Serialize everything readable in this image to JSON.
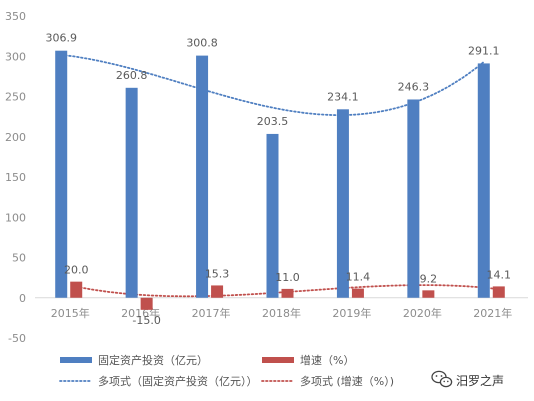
{
  "chart_data": {
    "type": "bar",
    "categories": [
      "2015年",
      "2016年",
      "2017年",
      "2018年",
      "2019年",
      "2020年",
      "2021年"
    ],
    "series": [
      {
        "name": "固定资产投资（亿元）",
        "values": [
          306.9,
          260.8,
          300.8,
          203.5,
          234.1,
          246.3,
          291.1
        ],
        "labels": [
          "306.9",
          "260.8",
          "300.8",
          "203.5",
          "234.1",
          "246.3",
          "291.1"
        ],
        "color": "#4f7fc1"
      },
      {
        "name": "增速（%）",
        "values": [
          20.0,
          -15.0,
          15.3,
          11.0,
          11.4,
          9.2,
          14.1
        ],
        "labels": [
          "20.0",
          "-15.0",
          "15.3",
          "11.0",
          "11.4",
          "9.2",
          "14.1"
        ],
        "color": "#c0504d"
      }
    ],
    "trendlines": [
      {
        "name": "多项式（固定资产投资（亿元））",
        "type": "polynomial",
        "of_series": 0,
        "color": "#4f7fc1",
        "style": "dotted"
      },
      {
        "name": "多项式 (增速（%）)",
        "type": "polynomial",
        "of_series": 1,
        "color": "#c0504d",
        "style": "dotted"
      }
    ],
    "ylim": [
      -50,
      350
    ],
    "yticks": [
      -50,
      0,
      50,
      100,
      150,
      200,
      250,
      300,
      350
    ],
    "grid": false,
    "legend_position": "bottom",
    "title": "",
    "xlabel": "",
    "ylabel": ""
  },
  "watermark": {
    "text": "汨罗之声",
    "icon": "wechat-icon"
  }
}
